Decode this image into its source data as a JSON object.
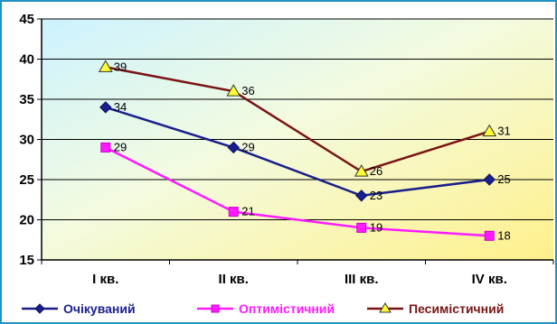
{
  "chart_data": {
    "type": "line",
    "categories": [
      "I кв.",
      "II кв.",
      "III кв.",
      "IV кв."
    ],
    "ylim": [
      15,
      45
    ],
    "yticks": [
      15,
      20,
      25,
      30,
      35,
      40,
      45
    ],
    "grid": true,
    "legend_position": "bottom",
    "series": [
      {
        "name": "Очікуваний",
        "values": [
          34,
          29,
          23,
          25
        ],
        "line_color": "#1a1f8c",
        "marker_color": "#1a1f8c",
        "marker": "diamond-icon",
        "label_color": "#000000"
      },
      {
        "name": "Оптимістичний",
        "values": [
          29,
          21,
          19,
          18
        ],
        "line_color": "#ff1aff",
        "marker_color": "#ff1aff",
        "marker": "square-icon",
        "label_color": "#ff33ff"
      },
      {
        "name": "Песимістичний",
        "values": [
          39,
          36,
          26,
          31
        ],
        "line_color": "#7a1414",
        "marker_color": "#ffff33",
        "marker": "triangle-icon",
        "label_color": "#ff33ff"
      }
    ]
  }
}
